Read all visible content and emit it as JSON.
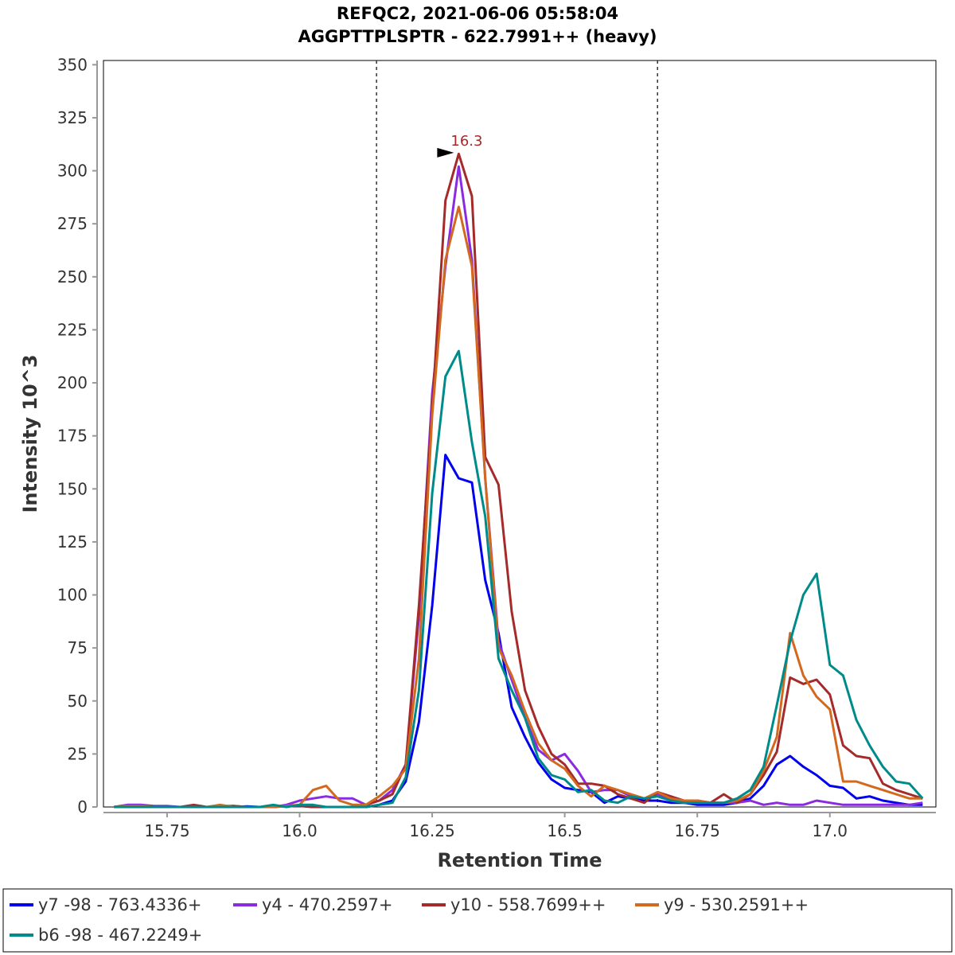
{
  "chart_data": {
    "type": "line",
    "title": "REFQC2, 2021-06-06 05:58:04",
    "subtitle": "AGGPTTPLSPTR - 622.7991++ (heavy)",
    "xlabel": "Retention Time",
    "ylabel": "Intensity 10^3",
    "xlim": [
      15.63,
      17.2
    ],
    "ylim": [
      0,
      352
    ],
    "xticks": [
      15.75,
      16.0,
      16.25,
      16.5,
      16.75,
      17.0
    ],
    "xtick_labels": [
      "15.75",
      "16.0",
      "16.25",
      "16.5",
      "16.75",
      "17.0"
    ],
    "yticks": [
      0,
      25,
      50,
      75,
      100,
      125,
      150,
      175,
      200,
      225,
      250,
      275,
      300,
      325,
      350
    ],
    "ytick_labels": [
      "0",
      "25",
      "50",
      "75",
      "100",
      "125",
      "150",
      "175",
      "200",
      "225",
      "250",
      "275",
      "300",
      "325",
      "350"
    ],
    "integration_boundaries": [
      16.145,
      16.675
    ],
    "peak_annotation": {
      "label": "16.3",
      "x": 16.3,
      "y": 308.5,
      "color": "#a52a2a"
    },
    "x": [
      15.65,
      15.675,
      15.7,
      15.725,
      15.75,
      15.775,
      15.8,
      15.825,
      15.85,
      15.875,
      15.9,
      15.925,
      15.95,
      15.975,
      16.0,
      16.025,
      16.05,
      16.075,
      16.1,
      16.125,
      16.15,
      16.175,
      16.2,
      16.225,
      16.25,
      16.275,
      16.3,
      16.325,
      16.35,
      16.375,
      16.4,
      16.425,
      16.45,
      16.475,
      16.5,
      16.525,
      16.55,
      16.575,
      16.6,
      16.625,
      16.65,
      16.675,
      16.7,
      16.725,
      16.75,
      16.775,
      16.8,
      16.825,
      16.85,
      16.875,
      16.9,
      16.925,
      16.95,
      16.975,
      17.0,
      17.025,
      17.05,
      17.075,
      17.1,
      17.125,
      17.15,
      17.175
    ],
    "series": [
      {
        "name": "y7 -98 - 763.4336+",
        "color": "#0000ee",
        "values": [
          0,
          0.5,
          0,
          0,
          0,
          0,
          0,
          0,
          0,
          0,
          0.3,
          0,
          0,
          0.5,
          0.5,
          0,
          0,
          0,
          0,
          0,
          1,
          3,
          12,
          40,
          95,
          166,
          155,
          153,
          107,
          82,
          47,
          33,
          21,
          13,
          9,
          8,
          7,
          2,
          5,
          4,
          3,
          3,
          2,
          2,
          1,
          1,
          1,
          2,
          4,
          10,
          20,
          24,
          19,
          15,
          10,
          9,
          4,
          5,
          3,
          2,
          1,
          1
        ]
      },
      {
        "name": "y4 - 470.2597+",
        "color": "#8a2be2",
        "values": [
          0,
          1,
          1,
          0.5,
          0.5,
          0,
          0,
          0,
          0.5,
          0.5,
          0,
          0,
          0,
          1,
          3,
          4,
          5,
          4,
          4,
          1,
          3,
          8,
          20,
          90,
          195,
          255,
          302,
          258,
          155,
          78,
          60,
          42,
          27,
          22,
          25,
          17,
          7,
          8,
          8,
          5,
          4,
          6,
          3,
          2,
          3,
          2,
          2,
          2,
          3,
          1,
          2,
          1,
          1,
          3,
          2,
          1,
          1,
          1,
          1,
          1,
          1,
          2
        ]
      },
      {
        "name": "y10 - 558.7699++",
        "color": "#a52a2a",
        "values": [
          0,
          0.5,
          0.5,
          0,
          0,
          0,
          1,
          0,
          0,
          0.5,
          0,
          0,
          0,
          0.5,
          0.5,
          0,
          0,
          0,
          0,
          1,
          3,
          6,
          20,
          95,
          188,
          286,
          308,
          288,
          165,
          152,
          92,
          55,
          38,
          25,
          20,
          11,
          11,
          10,
          6,
          4,
          2,
          7,
          5,
          3,
          3,
          2,
          6,
          2,
          6,
          15,
          26,
          61,
          58,
          60,
          53,
          29,
          24,
          23,
          11,
          8,
          6,
          4
        ]
      },
      {
        "name": "y9 - 530.2591++",
        "color": "#d2691e",
        "values": [
          0,
          0.5,
          0.5,
          0,
          0,
          0,
          0,
          0,
          1,
          0,
          0,
          0,
          0,
          0.5,
          1,
          8,
          10,
          3,
          1,
          1,
          5,
          10,
          18,
          70,
          185,
          258,
          283,
          255,
          155,
          75,
          62,
          45,
          30,
          22,
          18,
          10,
          5,
          10,
          8,
          6,
          4,
          7,
          4,
          3,
          3,
          2,
          2,
          3,
          6,
          17,
          33,
          82,
          62,
          52,
          46,
          12,
          12,
          10,
          8,
          6,
          4,
          4
        ]
      },
      {
        "name": "b6 -98 - 467.2249+",
        "color": "#008b8b",
        "values": [
          0,
          0,
          0,
          0,
          0,
          0,
          0,
          0,
          0,
          0,
          0,
          0,
          1,
          0,
          1,
          1,
          0,
          0,
          0,
          0,
          1,
          2,
          14,
          55,
          148,
          203,
          215,
          172,
          137,
          70,
          55,
          42,
          23,
          15,
          13,
          7,
          8,
          3,
          2,
          5,
          4,
          5,
          3,
          2,
          2,
          2,
          2,
          4,
          8,
          19,
          48,
          78,
          100,
          110,
          67,
          62,
          41,
          29,
          19,
          12,
          11,
          4
        ]
      }
    ],
    "legend_position": "bottom"
  }
}
